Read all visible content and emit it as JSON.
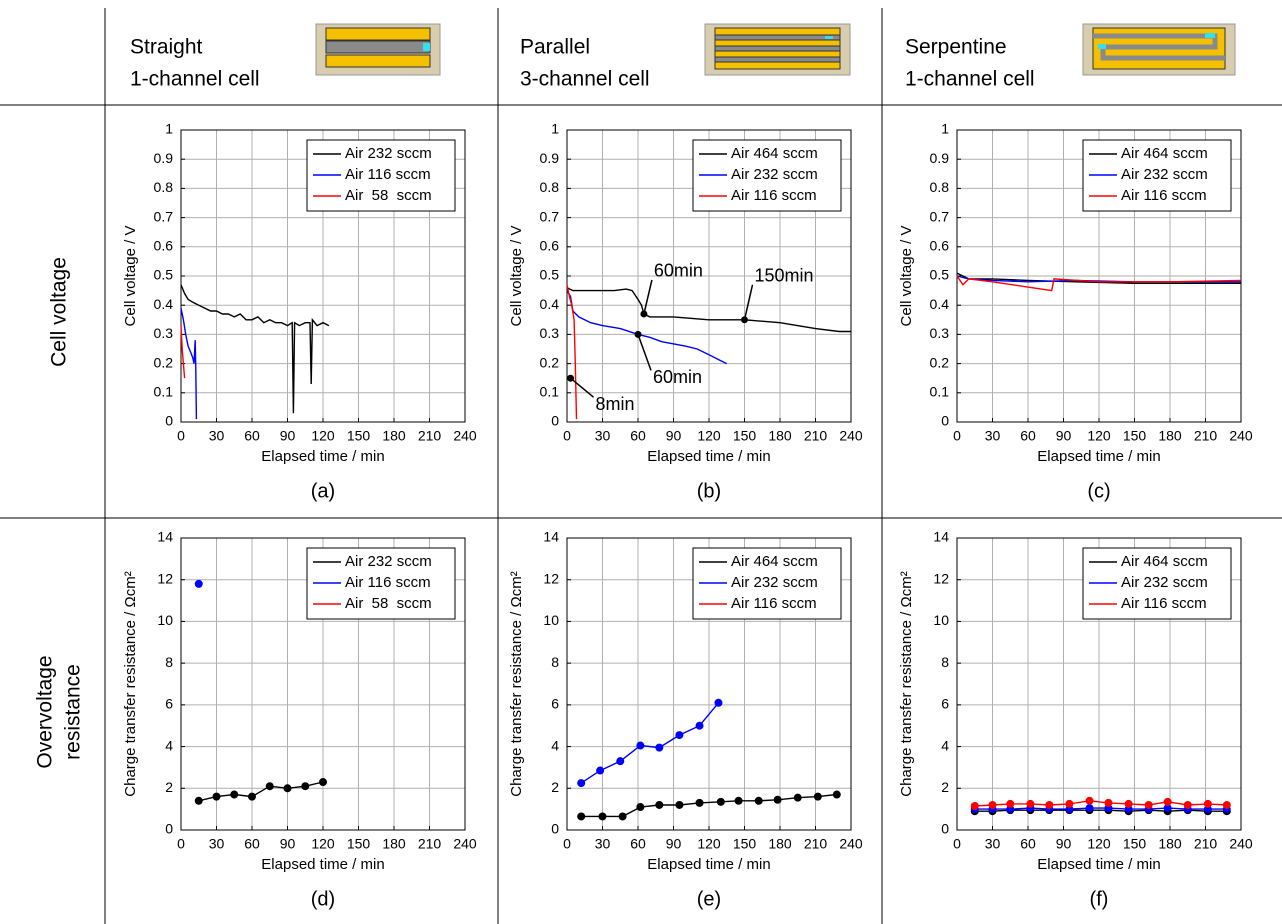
{
  "columns": [
    {
      "title": "Straight",
      "subtitle": "1-channel cell"
    },
    {
      "title": "Parallel",
      "subtitle": "3-channel cell"
    },
    {
      "title": "Serpentine",
      "subtitle": "1-channel cell"
    }
  ],
  "row_labels": [
    [
      "Cell voltage"
    ],
    [
      "Overvoltage",
      "resistance"
    ]
  ],
  "chart_data": [
    {
      "type": "line",
      "caption": "(a)",
      "xlabel": "Elapsed time / min",
      "ylabel": "Cell voltage / V",
      "xlim": [
        0,
        240
      ],
      "ylim": [
        0,
        1
      ],
      "xticks": [
        0,
        30,
        60,
        90,
        120,
        150,
        180,
        210,
        240
      ],
      "yticks": [
        0,
        0.1,
        0.2,
        0.3,
        0.4,
        0.5,
        0.6,
        0.7,
        0.8,
        0.9,
        1
      ],
      "grid": true,
      "legend": "upper right",
      "markers": false,
      "series": [
        {
          "name": "Air 232 sccm",
          "color": "#000000",
          "x": [
            0,
            3,
            6,
            10,
            15,
            20,
            25,
            30,
            35,
            40,
            45,
            50,
            55,
            60,
            65,
            70,
            75,
            80,
            85,
            90,
            94,
            95,
            96,
            100,
            105,
            109,
            110,
            111,
            115,
            120,
            125
          ],
          "values": [
            0.47,
            0.44,
            0.42,
            0.41,
            0.4,
            0.39,
            0.38,
            0.38,
            0.37,
            0.37,
            0.36,
            0.37,
            0.35,
            0.35,
            0.36,
            0.34,
            0.35,
            0.34,
            0.34,
            0.33,
            0.34,
            0.03,
            0.34,
            0.33,
            0.34,
            0.34,
            0.13,
            0.35,
            0.33,
            0.34,
            0.33
          ]
        },
        {
          "name": "Air 116 sccm",
          "color": "#0000ff",
          "x": [
            0,
            2,
            4,
            6,
            8,
            10,
            11,
            12,
            12.5,
            13
          ],
          "values": [
            0.39,
            0.35,
            0.3,
            0.26,
            0.24,
            0.22,
            0.2,
            0.28,
            0.18,
            0.01
          ]
        },
        {
          "name": "Air  58  sccm",
          "color": "#ff0000",
          "x": [
            0,
            1,
            2,
            3
          ],
          "values": [
            0.33,
            0.25,
            0.2,
            0.15
          ]
        }
      ]
    },
    {
      "type": "line",
      "caption": "(b)",
      "xlabel": "Elapsed time / min",
      "ylabel": "Cell voltage / V",
      "xlim": [
        0,
        240
      ],
      "ylim": [
        0,
        1
      ],
      "xticks": [
        0,
        30,
        60,
        90,
        120,
        150,
        180,
        210,
        240
      ],
      "yticks": [
        0,
        0.1,
        0.2,
        0.3,
        0.4,
        0.5,
        0.6,
        0.7,
        0.8,
        0.9,
        1
      ],
      "grid": true,
      "legend": "upper right",
      "markers": false,
      "series": [
        {
          "name": "Air 464 sccm",
          "color": "#000000",
          "x": [
            0,
            5,
            20,
            40,
            50,
            55,
            60,
            63,
            65,
            70,
            90,
            120,
            150,
            180,
            210,
            230,
            240
          ],
          "values": [
            0.46,
            0.45,
            0.45,
            0.45,
            0.455,
            0.45,
            0.42,
            0.4,
            0.37,
            0.36,
            0.36,
            0.35,
            0.35,
            0.34,
            0.32,
            0.31,
            0.31
          ]
        },
        {
          "name": "Air 232 sccm",
          "color": "#0000ff",
          "x": [
            0,
            3,
            5,
            10,
            20,
            30,
            45,
            60,
            70,
            80,
            100,
            110,
            120,
            130,
            135
          ],
          "values": [
            0.45,
            0.43,
            0.38,
            0.36,
            0.34,
            0.33,
            0.32,
            0.3,
            0.29,
            0.275,
            0.26,
            0.25,
            0.23,
            0.21,
            0.2
          ]
        },
        {
          "name": "Air 116 sccm",
          "color": "#ff0000",
          "x": [
            0,
            2,
            4,
            6,
            7,
            8
          ],
          "values": [
            0.47,
            0.43,
            0.4,
            0.35,
            0.2,
            0.01
          ]
        }
      ],
      "annotations": [
        {
          "text": "60min",
          "x": 65,
          "y": 0.37
        },
        {
          "text": "150min",
          "x": 150,
          "y": 0.35
        },
        {
          "text": "60min",
          "x": 60,
          "y": 0.3
        },
        {
          "text": "8min",
          "x": 3,
          "y": 0.15
        }
      ]
    },
    {
      "type": "line",
      "caption": "(c)",
      "xlabel": "Elapsed time / min",
      "ylabel": "Cell voltage / V",
      "xlim": [
        0,
        240
      ],
      "ylim": [
        0,
        1
      ],
      "xticks": [
        0,
        30,
        60,
        90,
        120,
        150,
        180,
        210,
        240
      ],
      "yticks": [
        0,
        0.1,
        0.2,
        0.3,
        0.4,
        0.5,
        0.6,
        0.7,
        0.8,
        0.9,
        1
      ],
      "grid": true,
      "legend": "upper right",
      "markers": false,
      "series": [
        {
          "name": "Air 464 sccm",
          "color": "#000000",
          "x": [
            0,
            10,
            30,
            60,
            100,
            150,
            200,
            240
          ],
          "values": [
            0.51,
            0.49,
            0.49,
            0.485,
            0.48,
            0.475,
            0.475,
            0.475
          ]
        },
        {
          "name": "Air 232 sccm",
          "color": "#0000ff",
          "x": [
            0,
            10,
            30,
            60,
            100,
            150,
            200,
            240
          ],
          "values": [
            0.5,
            0.49,
            0.485,
            0.48,
            0.485,
            0.48,
            0.48,
            0.48
          ]
        },
        {
          "name": "Air 116 sccm",
          "color": "#ff0000",
          "x": [
            0,
            5,
            10,
            30,
            80,
            82,
            120,
            180,
            240
          ],
          "values": [
            0.5,
            0.47,
            0.49,
            0.48,
            0.45,
            0.49,
            0.48,
            0.48,
            0.485
          ]
        }
      ]
    },
    {
      "type": "line",
      "caption": "(d)",
      "xlabel": "Elapsed time / min",
      "ylabel": "Charge transfer resistance / Ωcm²",
      "xlim": [
        0,
        240
      ],
      "ylim": [
        0,
        14
      ],
      "xticks": [
        0,
        30,
        60,
        90,
        120,
        150,
        180,
        210,
        240
      ],
      "yticks": [
        0,
        2,
        4,
        6,
        8,
        10,
        12,
        14
      ],
      "grid": true,
      "legend": "upper right",
      "markers": true,
      "series": [
        {
          "name": "Air 232 sccm",
          "color": "#000000",
          "x": [
            15,
            30,
            45,
            60,
            75,
            90,
            105,
            120
          ],
          "values": [
            1.4,
            1.6,
            1.7,
            1.6,
            2.1,
            2.0,
            2.1,
            2.3
          ]
        },
        {
          "name": "Air 116 sccm",
          "color": "#0000ff",
          "x": [
            15
          ],
          "values": [
            11.8
          ]
        },
        {
          "name": "Air  58  sccm",
          "color": "#ff0000",
          "x": [],
          "values": []
        }
      ]
    },
    {
      "type": "line",
      "caption": "(e)",
      "xlabel": "Elapsed time / min",
      "ylabel": "Charge transfer resistance / Ωcm²",
      "xlim": [
        0,
        240
      ],
      "ylim": [
        0,
        14
      ],
      "xticks": [
        0,
        30,
        60,
        90,
        120,
        150,
        180,
        210,
        240
      ],
      "yticks": [
        0,
        2,
        4,
        6,
        8,
        10,
        12,
        14
      ],
      "grid": true,
      "legend": "upper right",
      "markers": true,
      "series": [
        {
          "name": "Air 464 sccm",
          "color": "#000000",
          "x": [
            12,
            30,
            47,
            62,
            78,
            95,
            112,
            130,
            145,
            162,
            178,
            195,
            212,
            228
          ],
          "values": [
            0.65,
            0.65,
            0.65,
            1.1,
            1.2,
            1.2,
            1.3,
            1.35,
            1.4,
            1.4,
            1.45,
            1.55,
            1.6,
            1.7
          ]
        },
        {
          "name": "Air 232 sccm",
          "color": "#0000ff",
          "x": [
            12,
            28,
            45,
            62,
            78,
            95,
            112,
            128
          ],
          "values": [
            2.25,
            2.85,
            3.3,
            4.05,
            3.95,
            4.55,
            5.0,
            6.1
          ]
        },
        {
          "name": "Air 116 sccm",
          "color": "#ff0000",
          "x": [],
          "values": []
        }
      ]
    },
    {
      "type": "line",
      "caption": "(f)",
      "xlabel": "Elapsed time / min",
      "ylabel": "Charge transfer resistance / Ωcm²",
      "xlim": [
        0,
        240
      ],
      "ylim": [
        0,
        14
      ],
      "xticks": [
        0,
        30,
        60,
        90,
        120,
        150,
        180,
        210,
        240
      ],
      "yticks": [
        0,
        2,
        4,
        6,
        8,
        10,
        12,
        14
      ],
      "grid": true,
      "legend": "upper right",
      "markers": true,
      "series": [
        {
          "name": "Air 464 sccm",
          "color": "#000000",
          "x": [
            15,
            30,
            45,
            62,
            78,
            95,
            112,
            128,
            145,
            162,
            178,
            195,
            212,
            228
          ],
          "values": [
            0.9,
            0.9,
            0.95,
            0.95,
            0.95,
            0.95,
            0.95,
            0.95,
            0.9,
            0.95,
            0.9,
            0.95,
            0.9,
            0.9
          ]
        },
        {
          "name": "Air 232 sccm",
          "color": "#0000ff",
          "x": [
            15,
            30,
            45,
            62,
            78,
            95,
            112,
            128,
            145,
            162,
            178,
            195,
            212,
            228
          ],
          "values": [
            1.0,
            1.0,
            1.0,
            1.05,
            1.0,
            1.0,
            1.05,
            1.05,
            1.0,
            1.0,
            1.05,
            1.0,
            1.0,
            1.0
          ]
        },
        {
          "name": "Air 116 sccm",
          "color": "#ff0000",
          "x": [
            15,
            30,
            45,
            62,
            78,
            95,
            112,
            128,
            145,
            162,
            178,
            195,
            212,
            228
          ],
          "values": [
            1.15,
            1.2,
            1.25,
            1.25,
            1.2,
            1.25,
            1.4,
            1.3,
            1.25,
            1.2,
            1.35,
            1.2,
            1.25,
            1.2
          ]
        }
      ]
    }
  ]
}
